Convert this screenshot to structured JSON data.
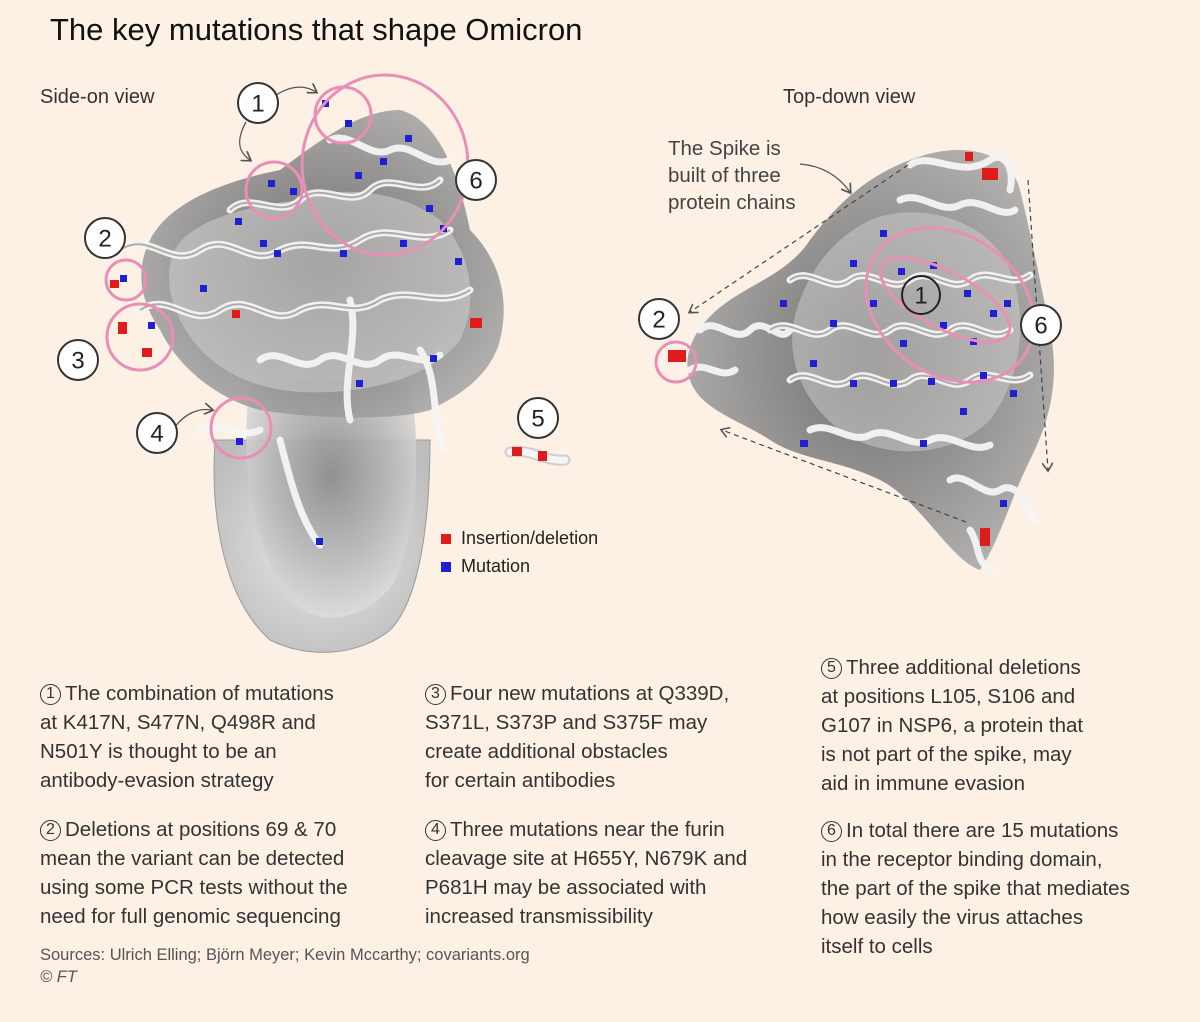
{
  "title": "The key mutations that shape Omicron",
  "views": {
    "side": "Side-on view",
    "top": "Top-down view"
  },
  "spike_note": [
    "The Spike is",
    "built of three",
    "protein chains"
  ],
  "legend": {
    "insertion_deletion": "Insertion/deletion",
    "mutation": "Mutation",
    "insertion_color": "#e01b1b",
    "mutation_color": "#1f1fd6"
  },
  "markers": {
    "m1": "1",
    "m2": "2",
    "m3": "3",
    "m4": "4",
    "m5": "5",
    "m6": "6"
  },
  "notes": [
    {
      "num": "1",
      "lines": [
        "The combination of mutations",
        "at K417N, S477N, Q498R and",
        "N501Y is thought to be an",
        "antibody-evasion strategy"
      ]
    },
    {
      "num": "2",
      "lines": [
        "Deletions at positions 69 & 70",
        "mean the variant can be detected",
        "using some PCR tests without the",
        "need for full genomic sequencing"
      ]
    },
    {
      "num": "3",
      "lines": [
        "Four new mutations at Q339D,",
        "S371L, S373P and S375F may",
        "create additional obstacles",
        "for certain antibodies"
      ]
    },
    {
      "num": "4",
      "lines": [
        "Three mutations near the furin",
        "cleavage site at H655Y, N679K and",
        "P681H may be associated with",
        "increased transmissibility"
      ]
    },
    {
      "num": "5",
      "lines": [
        "Three additional deletions",
        "at positions L105, S106 and",
        "G107 in NSP6, a protein that",
        "is not part of the spike, may",
        "aid in immune evasion"
      ]
    },
    {
      "num": "6",
      "lines": [
        "In total there are 15 mutations",
        "in the receptor binding domain,",
        "the part of the spike that mediates",
        "how easily the virus attaches",
        "itself to cells"
      ]
    }
  ],
  "sources": "Sources: Ulrich Elling; Björn Meyer; Kevin Mccarthy; covariants.org",
  "copyright": "© FT"
}
